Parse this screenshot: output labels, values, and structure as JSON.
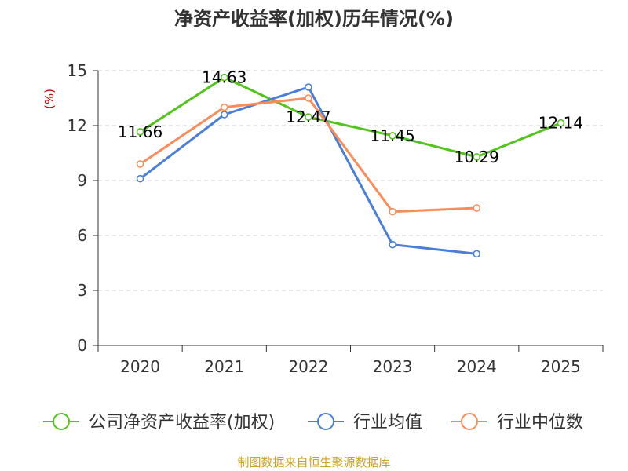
{
  "chart_data": {
    "type": "line",
    "title": "净资产收益率(加权)历年情况(%)",
    "ylabel": "(%)",
    "xlabel": "",
    "categories": [
      "2020",
      "2021",
      "2022",
      "2023",
      "2024",
      "2025"
    ],
    "ylim": [
      0,
      15
    ],
    "yticks": [
      0,
      3,
      6,
      9,
      12,
      15
    ],
    "grid": true,
    "legend_position": "bottom",
    "series": [
      {
        "name": "公司净资产收益率(加权)",
        "color": "#52c41a",
        "values": [
          11.66,
          14.63,
          12.47,
          11.45,
          10.29,
          12.14
        ],
        "labels": [
          "11.66",
          "14.63",
          "12.47",
          "11.45",
          "10.29",
          "12.14"
        ]
      },
      {
        "name": "行业均值",
        "color": "#4a7fd8",
        "values": [
          9.1,
          12.6,
          14.1,
          5.5,
          5.0,
          null
        ]
      },
      {
        "name": "行业中位数",
        "color": "#fa8c5a",
        "values": [
          9.9,
          13.0,
          13.5,
          7.3,
          7.5,
          null
        ]
      }
    ]
  },
  "source_text": "制图数据来自恒生聚源数据库",
  "colors": {
    "axis": "#333333",
    "grid": "#cccccc",
    "unit_label": "#cc0000",
    "source": "#c9a227"
  }
}
